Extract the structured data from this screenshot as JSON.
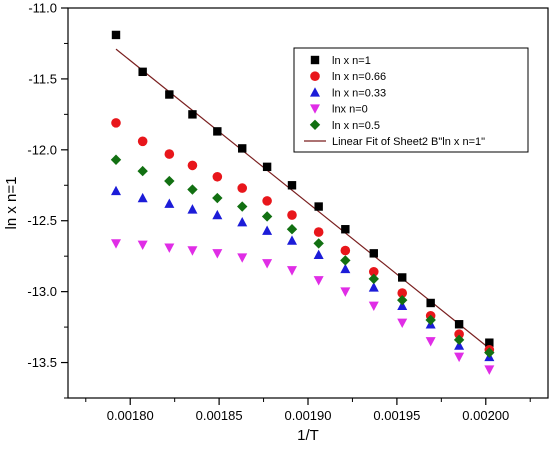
{
  "chart_data": {
    "type": "scatter",
    "xlabel": "1/T",
    "ylabel": "ln x  n=1",
    "xlim": [
      0.001765,
      0.002035
    ],
    "ylim": [
      -13.75,
      -11.0
    ],
    "x_ticks": [
      "0.00180",
      "0.00185",
      "0.00190",
      "0.00195",
      "0.00200"
    ],
    "x_tick_values": [
      0.0018,
      0.00185,
      0.0019,
      0.00195,
      0.002
    ],
    "y_ticks": [
      "-11.0",
      "-11.5",
      "-12.0",
      "-12.5",
      "-13.0",
      "-13.5"
    ],
    "y_tick_values": [
      -11.0,
      -11.5,
      -12.0,
      -12.5,
      -13.0,
      -13.5
    ],
    "legend_position": "top-right",
    "x": [
      0.001792,
      0.001807,
      0.001822,
      0.001835,
      0.001849,
      0.001863,
      0.001877,
      0.001891,
      0.001906,
      0.001921,
      0.001937,
      0.001953,
      0.001969,
      0.001985,
      0.002002
    ],
    "series": [
      {
        "name": "ln x  n=1",
        "marker": "square",
        "color": "#000000",
        "values": [
          -11.19,
          -11.45,
          -11.61,
          -11.75,
          -11.87,
          -11.99,
          -12.12,
          -12.25,
          -12.4,
          -12.56,
          -12.73,
          -12.9,
          -13.08,
          -13.23,
          -13.36
        ]
      },
      {
        "name": "ln x n=0.66",
        "marker": "circle",
        "color": "#e8161b",
        "values": [
          -11.81,
          -11.94,
          -12.03,
          -12.11,
          -12.19,
          -12.27,
          -12.36,
          -12.46,
          -12.58,
          -12.71,
          -12.86,
          -13.01,
          -13.17,
          -13.3,
          -13.41
        ]
      },
      {
        "name": "ln x n=0.33",
        "marker": "triangle-up",
        "color": "#1c1cd8",
        "values": [
          -12.29,
          -12.34,
          -12.38,
          -12.42,
          -12.46,
          -12.51,
          -12.57,
          -12.64,
          -12.74,
          -12.84,
          -12.97,
          -13.1,
          -13.23,
          -13.38,
          -13.46
        ]
      },
      {
        "name": "lnx n=0",
        "marker": "triangle-down",
        "color": "#e02de6",
        "values": [
          -12.66,
          -12.67,
          -12.69,
          -12.71,
          -12.73,
          -12.76,
          -12.8,
          -12.85,
          -12.92,
          -13.0,
          -13.1,
          -13.22,
          -13.35,
          -13.46,
          -13.55
        ]
      },
      {
        "name": "ln x n=0.5",
        "marker": "diamond",
        "color": "#127012",
        "values": [
          -12.07,
          -12.15,
          -12.22,
          -12.28,
          -12.34,
          -12.4,
          -12.47,
          -12.56,
          -12.66,
          -12.78,
          -12.91,
          -13.06,
          -13.2,
          -13.34,
          -13.43
        ]
      }
    ],
    "fit_line": {
      "name": "Linear Fit of Sheet2 B\"ln x  n=1\"",
      "color": "#7a1f1f",
      "x": [
        0.001792,
        0.002002
      ],
      "y": [
        -11.29,
        -13.4
      ]
    }
  }
}
